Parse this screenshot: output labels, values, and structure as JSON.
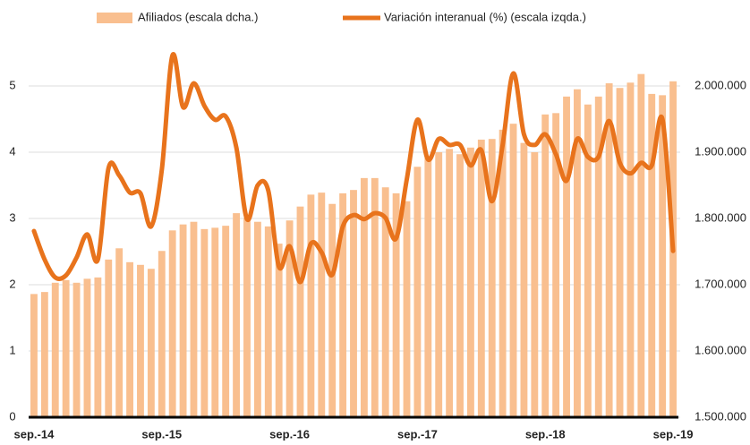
{
  "chart_data": {
    "type": "bar",
    "categories": [
      "sep.-14",
      null,
      null,
      null,
      null,
      null,
      null,
      null,
      null,
      null,
      null,
      null,
      "sep.-15",
      null,
      null,
      null,
      null,
      null,
      null,
      null,
      null,
      null,
      null,
      null,
      "sep.-16",
      null,
      null,
      null,
      null,
      null,
      null,
      null,
      null,
      null,
      null,
      null,
      "sep.-17",
      null,
      null,
      null,
      null,
      null,
      null,
      null,
      null,
      null,
      null,
      null,
      "sep.-18",
      null,
      null,
      null,
      null,
      null,
      null,
      null,
      null,
      null,
      null,
      null,
      "sep.-19"
    ],
    "series": [
      {
        "name": "Afiliados (escala dcha.)",
        "type": "bar",
        "axis": "y2",
        "color": "#f9bf8f",
        "values": [
          1686000,
          1689000,
          1703000,
          1707000,
          1703000,
          1709000,
          1711000,
          1738000,
          1755000,
          1734000,
          1730000,
          1724000,
          1751000,
          1782000,
          1791000,
          1795000,
          1784000,
          1786000,
          1789000,
          1808000,
          1801000,
          1795000,
          1788000,
          1762000,
          1797000,
          1818000,
          1836000,
          1839000,
          1822000,
          1838000,
          1843000,
          1861000,
          1861000,
          1847000,
          1838000,
          1826000,
          1878000,
          1892000,
          1900000,
          1905000,
          1897000,
          1907000,
          1919000,
          1920000,
          1934000,
          1943000,
          1914000,
          1900000,
          1957000,
          1959000,
          1984000,
          1995000,
          1972000,
          1984000,
          2004000,
          1997000,
          2005000,
          2018000,
          1988000,
          1986000,
          2007000
        ]
      },
      {
        "name": "Variación interanual (%) (escala izqda.)",
        "type": "line",
        "axis": "y",
        "color": "#e8731c",
        "values": [
          2.81,
          2.38,
          2.11,
          2.14,
          2.41,
          2.76,
          2.38,
          3.76,
          3.65,
          3.39,
          3.38,
          2.88,
          3.73,
          5.46,
          4.68,
          5.04,
          4.7,
          4.49,
          4.54,
          4.07,
          2.99,
          3.5,
          3.42,
          2.27,
          2.58,
          2.04,
          2.62,
          2.49,
          2.15,
          2.88,
          3.05,
          2.99,
          3.08,
          3.01,
          2.7,
          3.59,
          4.49,
          3.89,
          4.2,
          4.11,
          4.11,
          3.8,
          4.03,
          3.26,
          4.11,
          5.19,
          4.27,
          4.11,
          4.27,
          3.97,
          3.57,
          4.2,
          3.93,
          3.93,
          4.47,
          3.84,
          3.68,
          3.84,
          3.8,
          4.5,
          2.51
        ]
      }
    ],
    "ylim": [
      0,
      5.5
    ],
    "yticks": [
      0,
      1,
      2,
      3,
      4,
      5
    ],
    "y2lim": [
      1500000,
      2050000
    ],
    "y2ticks": [
      {
        "value": 1500000,
        "label": "1.500.000"
      },
      {
        "value": 1600000,
        "label": "1.600.000"
      },
      {
        "value": 1700000,
        "label": "1.700.000"
      },
      {
        "value": 1800000,
        "label": "1.800.000"
      },
      {
        "value": 1900000,
        "label": "1.900.000"
      },
      {
        "value": 2000000,
        "label": "2.000.000"
      }
    ],
    "grid": true
  }
}
